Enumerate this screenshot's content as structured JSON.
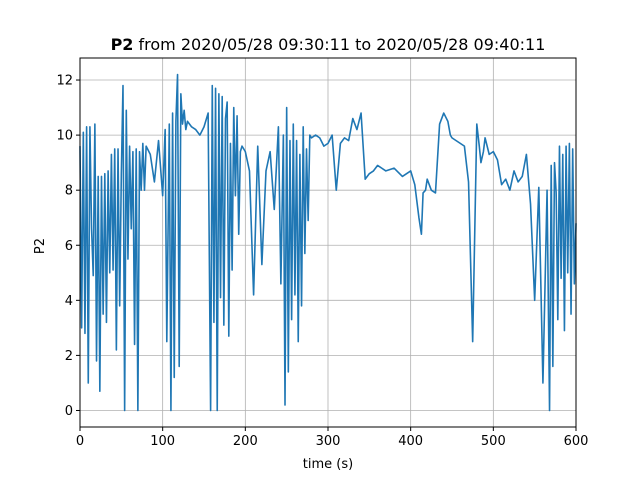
{
  "chart_data": {
    "type": "line",
    "title_bold": "P2",
    "title_rest": " from 2020/05/28 09:30:11 to 2020/05/28 09:40:11",
    "xlabel": "time (s)",
    "ylabel": "P2",
    "xlim": [
      0,
      600
    ],
    "ylim": [
      -0.6,
      12.8
    ],
    "xticks": [
      0,
      100,
      200,
      300,
      400,
      500,
      600
    ],
    "yticks": [
      0,
      2,
      4,
      6,
      8,
      10,
      12
    ],
    "grid": true,
    "series": [
      {
        "color": "#1f77b4",
        "x": [
          0,
          2,
          4,
          6,
          8,
          10,
          12,
          14,
          16,
          18,
          20,
          22,
          24,
          26,
          28,
          30,
          32,
          34,
          36,
          38,
          40,
          42,
          44,
          46,
          48,
          50,
          52,
          54,
          56,
          58,
          60,
          62,
          64,
          66,
          68,
          70,
          72,
          74,
          76,
          78,
          80,
          85,
          90,
          95,
          100,
          103,
          105,
          108,
          110,
          112,
          114,
          116,
          118,
          120,
          122,
          124,
          126,
          128,
          130,
          135,
          140,
          145,
          150,
          155,
          158,
          160,
          162,
          164,
          166,
          168,
          170,
          172,
          174,
          176,
          178,
          180,
          182,
          184,
          186,
          188,
          190,
          192,
          194,
          196,
          200,
          205,
          210,
          215,
          220,
          225,
          230,
          235,
          240,
          243,
          246,
          248,
          250,
          252,
          254,
          256,
          258,
          260,
          262,
          264,
          266,
          268,
          270,
          272,
          274,
          276,
          278,
          280,
          285,
          290,
          295,
          300,
          305,
          310,
          315,
          320,
          325,
          330,
          335,
          340,
          345,
          350,
          355,
          360,
          370,
          380,
          390,
          400,
          405,
          410,
          413,
          415,
          418,
          420,
          425,
          430,
          435,
          440,
          445,
          448,
          450,
          455,
          460,
          465,
          470,
          475,
          480,
          483,
          485,
          488,
          490,
          495,
          500,
          505,
          510,
          515,
          520,
          525,
          530,
          535,
          540,
          545,
          550,
          555,
          560,
          565,
          568,
          570,
          572,
          574,
          576,
          578,
          580,
          582,
          584,
          586,
          588,
          590,
          592,
          594,
          596,
          598,
          600
        ],
        "y": [
          9.6,
          3.0,
          10.1,
          2.8,
          10.3,
          1.0,
          10.3,
          6.6,
          4.9,
          10.4,
          1.8,
          8.5,
          0.7,
          8.5,
          3.5,
          8.6,
          3.2,
          8.7,
          5.0,
          9.3,
          5.1,
          9.5,
          2.2,
          9.5,
          3.8,
          8.6,
          11.8,
          0.0,
          10.9,
          5.5,
          9.6,
          6.6,
          9.4,
          2.4,
          9.5,
          0.0,
          9.4,
          8.0,
          9.7,
          8.0,
          9.6,
          9.3,
          8.3,
          9.8,
          7.8,
          10.2,
          2.5,
          10.4,
          0.0,
          10.8,
          1.2,
          10.5,
          12.2,
          1.6,
          11.5,
          10.4,
          10.9,
          10.2,
          10.5,
          10.3,
          10.2,
          10.0,
          10.3,
          10.8,
          0.0,
          11.8,
          3.2,
          11.7,
          0.0,
          11.5,
          4.1,
          11.4,
          3.1,
          10.6,
          11.2,
          2.7,
          9.7,
          5.1,
          11.0,
          7.8,
          10.7,
          6.4,
          9.4,
          9.6,
          9.4,
          8.7,
          4.2,
          9.6,
          5.3,
          8.7,
          9.4,
          7.3,
          10.3,
          4.6,
          10.0,
          0.2,
          11.0,
          1.4,
          9.8,
          3.3,
          10.4,
          4.2,
          9.8,
          2.5,
          9.3,
          3.8,
          10.3,
          5.7,
          9.5,
          6.9,
          10.0,
          9.9,
          10.0,
          9.9,
          9.6,
          9.7,
          10.0,
          8.0,
          9.7,
          9.9,
          9.8,
          10.6,
          10.2,
          10.8,
          8.4,
          8.6,
          8.7,
          8.9,
          8.7,
          8.8,
          8.5,
          8.7,
          8.2,
          7.0,
          6.4,
          7.9,
          8.0,
          8.4,
          8.0,
          7.9,
          10.4,
          10.8,
          10.5,
          10.0,
          9.9,
          9.8,
          9.7,
          9.6,
          8.3,
          2.5,
          10.4,
          9.6,
          9.0,
          9.4,
          9.9,
          9.3,
          9.4,
          9.1,
          8.2,
          8.4,
          8.0,
          8.7,
          8.3,
          8.5,
          9.3,
          7.5,
          4.0,
          8.1,
          1.0,
          8.0,
          0.0,
          8.9,
          1.6,
          9.0,
          7.9,
          3.3,
          9.6,
          4.8,
          9.3,
          2.9,
          9.6,
          5.0,
          9.7,
          3.5,
          9.5,
          4.6,
          6.8
        ]
      }
    ]
  }
}
